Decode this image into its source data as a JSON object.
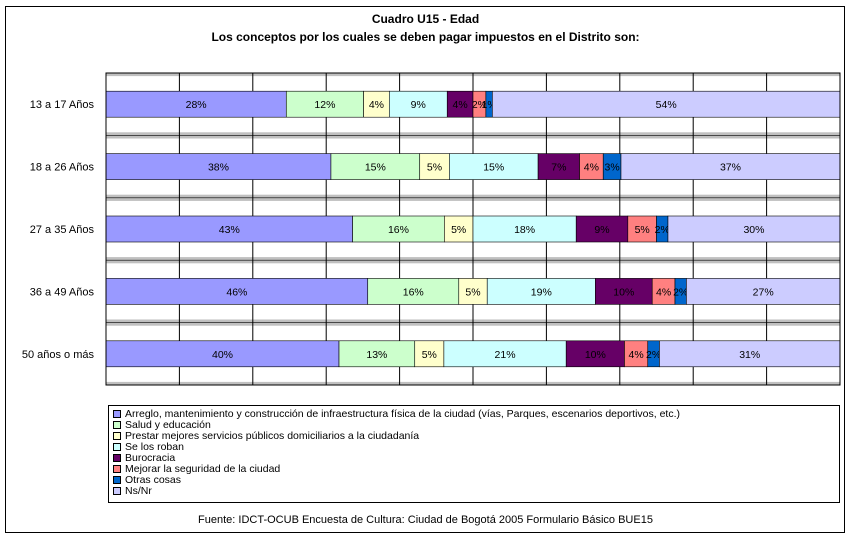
{
  "chart_data": {
    "type": "bar",
    "orientation": "horizontal",
    "stacked": "percent",
    "title": "Cuadro U15 - Edad",
    "subtitle": "Los conceptos por los cuales se deben pagar impuestos en el Distrito son:",
    "categories": [
      "13 a 17 Años",
      "18 a 26 Años",
      "27 a 35 Años",
      "36 a 49 Años",
      "50 años o más"
    ],
    "series": [
      {
        "name": "Arreglo, mantenimiento y construcción de infraestructura física de la ciudad (vías, Parques, escenarios deportivos, etc.)",
        "color": "#9999ff",
        "values": [
          28,
          38,
          43,
          46,
          40
        ]
      },
      {
        "name": "Salud y educación",
        "color": "#ccffcc",
        "values": [
          12,
          15,
          16,
          16,
          13
        ]
      },
      {
        "name": "Prestar mejores servicios públicos domiciliarios a la ciudadanía",
        "color": "#ffffcc",
        "values": [
          4,
          5,
          5,
          5,
          5
        ]
      },
      {
        "name": "Se los roban",
        "color": "#ccffff",
        "values": [
          9,
          15,
          18,
          19,
          21
        ]
      },
      {
        "name": "Burocracia",
        "color": "#660066",
        "values": [
          4,
          7,
          9,
          10,
          10
        ]
      },
      {
        "name": "Mejorar la seguridad de la ciudad",
        "color": "#ff8080",
        "values": [
          2,
          4,
          5,
          4,
          4
        ]
      },
      {
        "name": "Otras cosas",
        "color": "#0066cc",
        "values": [
          1,
          3,
          2,
          2,
          2
        ]
      },
      {
        "name": "Ns/Nr",
        "color": "#ccccff",
        "values": [
          54,
          37,
          30,
          27,
          31
        ]
      }
    ],
    "data_labels": [
      [
        "28%",
        "12%",
        "4%",
        "9%",
        "4%",
        "2%",
        "1%",
        "54%"
      ],
      [
        "38%",
        "15%",
        "5%",
        "15%",
        "7%",
        "4%",
        "3%",
        "37%"
      ],
      [
        "43%",
        "16%",
        "5%",
        "18%",
        "9%",
        "5%",
        "2%",
        "30%"
      ],
      [
        "46%",
        "16%",
        "5%",
        "19%",
        "10%",
        "4%",
        "2%",
        "27%"
      ],
      [
        "40%",
        "13%",
        "5%",
        "21%",
        "10%",
        "4%",
        "2%",
        "31%"
      ]
    ],
    "grid": true,
    "legend_position": "bottom",
    "source": "Fuente: IDCT-OCUB Encuesta de Cultura: Ciudad de Bogotá 2005 Formulario Básico BUE15"
  }
}
